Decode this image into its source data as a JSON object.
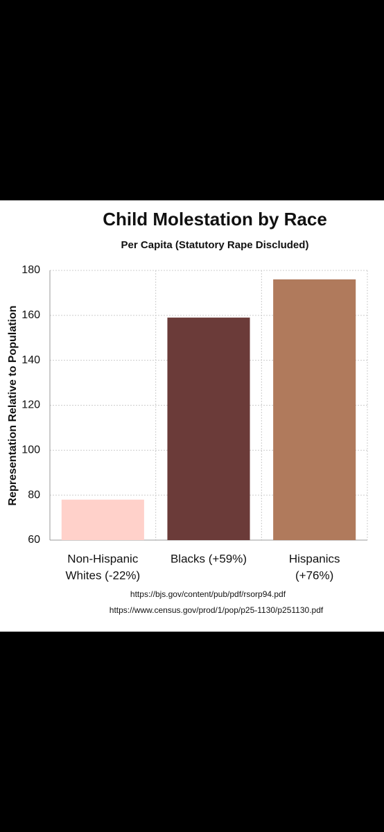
{
  "chart_data": {
    "type": "bar",
    "title": "Child Molestation by Race",
    "subtitle": "Per Capita (Statutory Rape Discluded)",
    "y_label": "Representation Relative to Population",
    "categories": [
      [
        "Non-Hispanic",
        "Whites (-22%)"
      ],
      [
        "Blacks (+59%)"
      ],
      [
        "Hispanics",
        "(+76%)"
      ]
    ],
    "values": [
      78,
      159,
      176
    ],
    "colors": [
      "#ffd1ca",
      "#6b3b39",
      "#b07a5c"
    ],
    "ylim": [
      60,
      180
    ],
    "yticks": [
      60,
      80,
      100,
      120,
      140,
      160,
      180
    ],
    "grid": true,
    "sources": [
      "https://bjs.gov/content/pub/pdf/rsorp94.pdf",
      "https://www.census.gov/prod/1/pop/p25-1130/p251130.pdf"
    ]
  }
}
